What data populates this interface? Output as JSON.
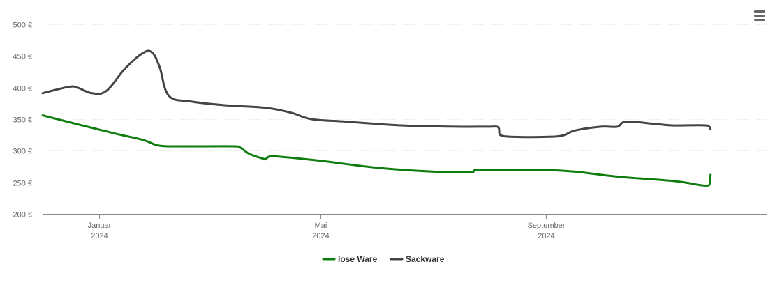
{
  "menu": {
    "icon": "hamburger-menu-icon"
  },
  "chart_data": {
    "type": "line",
    "title": "",
    "xlabel": "",
    "ylabel": "",
    "ylim": [
      200,
      500
    ],
    "xlim": [
      "2023-12-01",
      "2024-12-31"
    ],
    "yticks": [
      {
        "value": 200,
        "label": "200 €"
      },
      {
        "value": 250,
        "label": "250 €"
      },
      {
        "value": 300,
        "label": "300 €"
      },
      {
        "value": 350,
        "label": "350 €"
      },
      {
        "value": 400,
        "label": "400 €"
      },
      {
        "value": 450,
        "label": "450 €"
      },
      {
        "value": 500,
        "label": "500 €"
      }
    ],
    "xticks": [
      {
        "date": "2024-01-01",
        "label": [
          "Januar",
          "2024"
        ]
      },
      {
        "date": "2024-05-01",
        "label": [
          "Mai",
          "2024"
        ]
      },
      {
        "date": "2024-09-01",
        "label": [
          "September",
          "2024"
        ]
      }
    ],
    "grid": true,
    "legend_position": "bottom-center",
    "series": [
      {
        "name": "lose Ware",
        "color": "#0f7c0f",
        "points": [
          [
            "2023-12-01",
            356
          ],
          [
            "2023-12-20",
            342
          ],
          [
            "2024-01-10",
            327
          ],
          [
            "2024-01-25",
            317
          ],
          [
            "2024-02-03",
            308
          ],
          [
            "2024-02-18",
            307
          ],
          [
            "2024-03-15",
            307
          ],
          [
            "2024-03-18",
            305
          ],
          [
            "2024-03-23",
            295
          ],
          [
            "2024-03-31",
            287
          ],
          [
            "2024-04-01",
            287
          ],
          [
            "2024-04-03",
            291
          ],
          [
            "2024-04-07",
            291
          ],
          [
            "2024-05-01",
            284
          ],
          [
            "2024-06-01",
            273
          ],
          [
            "2024-07-01",
            267
          ],
          [
            "2024-07-23",
            266
          ],
          [
            "2024-07-24",
            269
          ],
          [
            "2024-08-15",
            269
          ],
          [
            "2024-09-05",
            269
          ],
          [
            "2024-09-20",
            266
          ],
          [
            "2024-10-10",
            259
          ],
          [
            "2024-11-10",
            252
          ],
          [
            "2024-11-29",
            245
          ],
          [
            "2024-11-30",
            262
          ]
        ]
      },
      {
        "name": "Sackware",
        "color": "#434348",
        "points": [
          [
            "2023-12-01",
            391
          ],
          [
            "2023-12-15",
            401
          ],
          [
            "2023-12-20",
            400
          ],
          [
            "2023-12-28",
            391
          ],
          [
            "2024-01-05",
            395
          ],
          [
            "2024-01-15",
            430
          ],
          [
            "2024-01-25",
            455
          ],
          [
            "2024-01-30",
            455
          ],
          [
            "2024-02-03",
            432
          ],
          [
            "2024-02-08",
            387
          ],
          [
            "2024-02-20",
            378
          ],
          [
            "2024-03-10",
            372
          ],
          [
            "2024-04-01",
            368
          ],
          [
            "2024-04-15",
            360
          ],
          [
            "2024-04-26",
            350
          ],
          [
            "2024-05-15",
            346
          ],
          [
            "2024-06-15",
            340
          ],
          [
            "2024-07-15",
            338
          ],
          [
            "2024-08-01",
            338
          ],
          [
            "2024-08-06",
            337
          ],
          [
            "2024-08-07",
            325
          ],
          [
            "2024-08-15",
            322
          ],
          [
            "2024-09-01",
            322
          ],
          [
            "2024-09-10",
            324
          ],
          [
            "2024-09-17",
            332
          ],
          [
            "2024-10-01",
            338
          ],
          [
            "2024-10-10",
            338
          ],
          [
            "2024-10-15",
            346
          ],
          [
            "2024-11-01",
            342
          ],
          [
            "2024-11-10",
            340
          ],
          [
            "2024-11-28",
            340
          ],
          [
            "2024-11-30",
            334
          ]
        ]
      }
    ]
  }
}
